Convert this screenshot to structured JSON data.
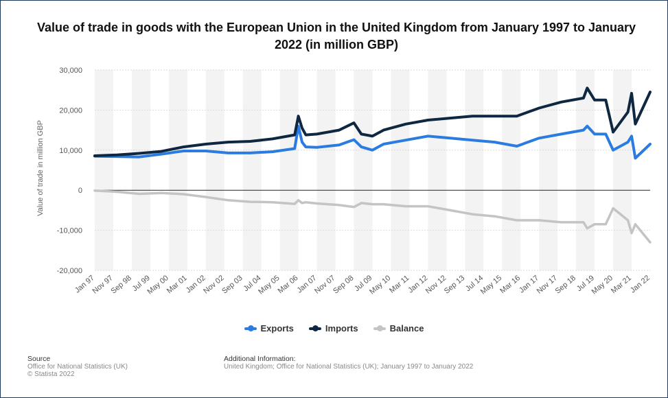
{
  "title": "Value of trade in goods with the European Union in the United Kingdom from January 1997 to January 2022 (in million GBP)",
  "legend": {
    "exports": "Exports",
    "imports": "Imports",
    "balance": "Balance"
  },
  "footer": {
    "source_heading": "Source",
    "source_line1": "Office for National Statistics (UK)",
    "source_line2": "© Statista 2022",
    "additional_heading": "Additional Information:",
    "additional_text": "United Kingdom; Office for National Statistics (UK); January 1997 to January 2022"
  },
  "colors": {
    "exports": "#2b7ce0",
    "imports": "#0f2740",
    "balance": "#c4c4c4"
  },
  "chart_data": {
    "type": "line",
    "title": "Value of trade in goods with the European Union in the United Kingdom from January 1997 to January 2022 (in million GBP)",
    "ylabel": "Value of trade in million GBP",
    "xlabel": "",
    "ylim": [
      -20000,
      30000
    ],
    "yticks": [
      30000,
      20000,
      10000,
      0,
      -10000,
      -20000
    ],
    "ytick_labels": [
      "30,000",
      "20,000",
      "10,000",
      "0",
      "-10,000",
      "-20,000"
    ],
    "xtick_labels": [
      "Jan 97",
      "Nov 97",
      "Sep 98",
      "Jul 99",
      "May 00",
      "Mar 01",
      "Jan 02",
      "Nov 02",
      "Sep 03",
      "Jul 04",
      "May 05",
      "Mar 06",
      "Jan 07",
      "Nov 07",
      "Sep 08",
      "Jul 09",
      "May 10",
      "Mar 11",
      "Jan 12",
      "Nov 12",
      "Sep 13",
      "Jul 14",
      "May 15",
      "Mar 16",
      "Jan 17",
      "Nov 17",
      "Sep 18",
      "Jul 19",
      "May 20",
      "Mar 21",
      "Jan 22"
    ],
    "grid": true,
    "legend_position": "bottom",
    "x": [
      "Jan 97",
      "Jan 98",
      "Jan 99",
      "Jan 00",
      "Jan 01",
      "Jan 02",
      "Jan 03",
      "Jan 04",
      "Jan 05",
      "Jan 06",
      "Mar 06",
      "May 06",
      "Jul 06",
      "Jan 07",
      "Jan 08",
      "Sep 08",
      "Jan 09",
      "Jul 09",
      "Jan 10",
      "Jan 11",
      "Jan 12",
      "Jan 13",
      "Jan 14",
      "Jan 15",
      "Jan 16",
      "Jan 17",
      "Jan 18",
      "Jan 19",
      "Mar 19",
      "Jul 19",
      "Jan 20",
      "May 20",
      "Jan 21",
      "Mar 21",
      "May 21",
      "Jan 22"
    ],
    "series": [
      {
        "name": "Exports",
        "values": [
          8500,
          8400,
          8300,
          9000,
          9800,
          9800,
          9300,
          9300,
          9600,
          10400,
          16000,
          12000,
          10800,
          10700,
          11300,
          12600,
          10800,
          10000,
          11500,
          12500,
          13500,
          13000,
          12500,
          12000,
          11000,
          13000,
          14000,
          15000,
          16000,
          14000,
          14000,
          10000,
          12000,
          13500,
          8000,
          11500
        ]
      },
      {
        "name": "Imports",
        "values": [
          8600,
          8800,
          9200,
          9700,
          10800,
          11500,
          12000,
          12200,
          12800,
          13800,
          18500,
          15500,
          13800,
          14000,
          15000,
          16800,
          14000,
          13500,
          15000,
          16500,
          17500,
          18000,
          18500,
          18500,
          18500,
          20500,
          22000,
          23000,
          25500,
          22500,
          22500,
          14500,
          19500,
          24200,
          16500,
          24500
        ]
      },
      {
        "name": "Balance",
        "values": [
          -100,
          -400,
          -900,
          -700,
          -1000,
          -1700,
          -2500,
          -2900,
          -3000,
          -3400,
          -2500,
          -3200,
          -3000,
          -3300,
          -3700,
          -4200,
          -3200,
          -3500,
          -3500,
          -4000,
          -4000,
          -5000,
          -6000,
          -6500,
          -7500,
          -7500,
          -8000,
          -8000,
          -9500,
          -8500,
          -8500,
          -4500,
          -7500,
          -10700,
          -8500,
          -13000
        ]
      }
    ]
  }
}
